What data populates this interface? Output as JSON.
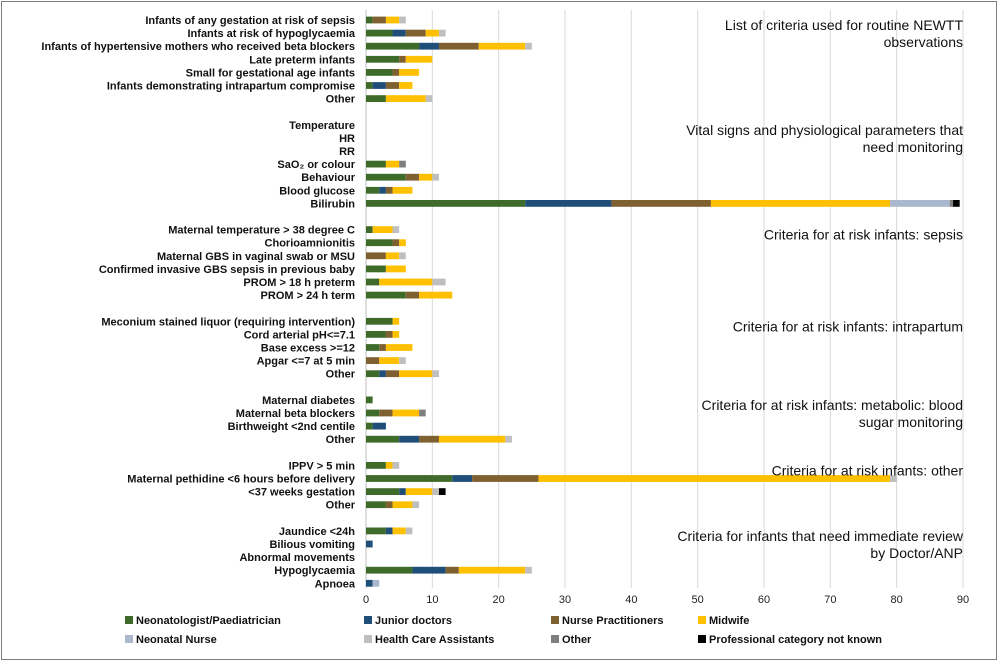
{
  "chart_data": {
    "type": "bar",
    "orientation": "horizontal",
    "stacked": true,
    "xlim": [
      0,
      90
    ],
    "xticks": [
      0,
      10,
      20,
      30,
      40,
      50,
      60,
      70,
      80,
      90
    ],
    "grid": true,
    "legend_position": "bottom",
    "series": [
      {
        "name": "Neonatologist/Paediatrician",
        "color": "#3f6b2a"
      },
      {
        "name": "Junior doctors",
        "color": "#1f4e79"
      },
      {
        "name": "Nurse Practitioners",
        "color": "#7f6030"
      },
      {
        "name": "Midwife",
        "color": "#ffc000"
      },
      {
        "name": "Neonatal Nurse",
        "color": "#a9b8cf"
      },
      {
        "name": "Health Care Assistants",
        "color": "#bfbfbf"
      },
      {
        "name": "Other",
        "color": "#7f7f7f"
      },
      {
        "name": "Professional category not known",
        "color": "#000000"
      }
    ],
    "groups": [
      {
        "title": [
          "List of criteria used for routine NEWTT",
          "observations"
        ],
        "items": [
          {
            "label": "Infants of any gestation at risk of sepsis",
            "values": [
              1,
              0,
              2,
              2,
              0,
              1,
              0,
              0
            ]
          },
          {
            "label": "Infants at risk of hypoglycaemia",
            "values": [
              4,
              2,
              3,
              2,
              0,
              1,
              0,
              0
            ]
          },
          {
            "label": "Infants of hypertensive mothers who received beta blockers",
            "values": [
              8,
              3,
              6,
              7,
              0,
              1,
              0,
              0
            ]
          },
          {
            "label": "Late preterm infants",
            "values": [
              5,
              0,
              1,
              4,
              0,
              0,
              0,
              0
            ]
          },
          {
            "label": "Small for gestational age infants",
            "values": [
              4,
              0,
              1,
              3,
              0,
              0,
              0,
              0
            ]
          },
          {
            "label": "Infants demonstrating intrapartum compromise",
            "values": [
              1,
              2,
              2,
              2,
              0,
              0,
              0,
              0
            ]
          },
          {
            "label": "Other",
            "values": [
              3,
              0,
              0,
              6,
              0,
              1,
              0,
              0
            ]
          }
        ]
      },
      {
        "title": [
          "Vital signs and physiological parameters that",
          "need monitoring"
        ],
        "items": [
          {
            "label": "Temperature",
            "values": [
              0,
              0,
              0,
              0,
              0,
              0,
              0,
              0
            ]
          },
          {
            "label": "HR",
            "values": [
              0,
              0,
              0,
              0,
              0,
              0,
              0,
              0
            ]
          },
          {
            "label": "RR",
            "values": [
              0,
              0,
              0,
              0,
              0,
              0,
              0,
              0
            ]
          },
          {
            "label": "SaO₂ or colour",
            "values": [
              3,
              0,
              0,
              2,
              0,
              0,
              1,
              0
            ]
          },
          {
            "label": "Behaviour",
            "values": [
              6,
              0,
              2,
              2,
              0,
              1,
              0,
              0
            ]
          },
          {
            "label": "Blood glucose",
            "values": [
              2,
              1,
              1,
              3,
              0,
              0,
              0,
              0
            ]
          },
          {
            "label": "Bilirubin",
            "values": [
              24,
              13,
              15,
              27,
              9,
              0,
              0.5,
              1
            ]
          }
        ]
      },
      {
        "title": [
          "Criteria for at risk infants: sepsis"
        ],
        "items": [
          {
            "label": "Maternal temperature > 38 degree C",
            "values": [
              1,
              0,
              0,
              3,
              0,
              1,
              0,
              0
            ]
          },
          {
            "label": "Chorioamnionitis",
            "values": [
              4,
              0,
              1,
              1,
              0,
              0,
              0,
              0
            ]
          },
          {
            "label": "Maternal GBS in vaginal swab or MSU",
            "values": [
              0,
              0,
              3,
              2,
              0,
              1,
              0,
              0
            ]
          },
          {
            "label": "Confirmed invasive GBS sepsis in previous baby",
            "values": [
              3,
              0,
              0,
              3,
              0,
              0,
              0,
              0
            ]
          },
          {
            "label": "PROM > 18 h preterm",
            "values": [
              2,
              0,
              0,
              8,
              0,
              2,
              0,
              0
            ]
          },
          {
            "label": "PROM > 24 h term",
            "values": [
              6,
              0,
              2,
              5,
              0,
              0,
              0,
              0
            ]
          }
        ]
      },
      {
        "title": [
          "Criteria for at risk infants: intrapartum"
        ],
        "items": [
          {
            "label": "Meconium stained liquor (requiring intervention)",
            "values": [
              4,
              0,
              0,
              1,
              0,
              0,
              0,
              0
            ]
          },
          {
            "label": "Cord arterial pH<=7.1",
            "values": [
              3,
              0,
              1,
              1,
              0,
              0,
              0,
              0
            ]
          },
          {
            "label": "Base excess >=12",
            "values": [
              2,
              0,
              1,
              4,
              0,
              0,
              0,
              0
            ]
          },
          {
            "label": "Apgar <=7 at 5 min",
            "values": [
              0,
              0,
              2,
              3,
              0,
              1,
              0,
              0
            ]
          },
          {
            "label": "Other",
            "values": [
              2,
              1,
              2,
              5,
              0,
              1,
              0,
              0
            ]
          }
        ]
      },
      {
        "title": [
          "Criteria for at risk infants: metabolic: blood",
          "sugar monitoring"
        ],
        "items": [
          {
            "label": "Maternal diabetes",
            "values": [
              1,
              0,
              0,
              0,
              0,
              0,
              0,
              0
            ]
          },
          {
            "label": "Maternal beta blockers",
            "values": [
              2,
              0,
              2,
              4,
              0,
              0,
              1,
              0
            ]
          },
          {
            "label": "Birthweight <2nd centile",
            "values": [
              1,
              2,
              0,
              0,
              0,
              0,
              0,
              0
            ]
          },
          {
            "label": "Other",
            "values": [
              5,
              3,
              3,
              10,
              0,
              1,
              0,
              0
            ]
          }
        ]
      },
      {
        "title": [
          "Criteria for at risk infants: other"
        ],
        "items": [
          {
            "label": "IPPV > 5 min",
            "values": [
              3,
              0,
              0,
              1,
              0,
              1,
              0,
              0
            ]
          },
          {
            "label": "Maternal pethidine <6 hours before delivery",
            "values": [
              13,
              3,
              10,
              53,
              0,
              1,
              0,
              0
            ]
          },
          {
            "label": "<37 weeks gestation",
            "values": [
              5,
              1,
              0,
              4,
              0,
              1,
              0,
              1
            ]
          },
          {
            "label": "Other",
            "values": [
              3,
              0,
              1,
              3,
              0,
              1,
              0,
              0
            ]
          }
        ]
      },
      {
        "title": [
          "Criteria for infants that need immediate review",
          "by Doctor/ANP"
        ],
        "items": [
          {
            "label": "Jaundice <24h",
            "values": [
              3,
              1,
              0,
              2,
              0,
              1,
              0,
              0
            ]
          },
          {
            "label": "Bilious vomiting",
            "values": [
              0,
              1,
              0,
              0,
              0,
              0,
              0,
              0
            ]
          },
          {
            "label": "Abnormal movements",
            "values": [
              0,
              0,
              0,
              0,
              0,
              0,
              0,
              0
            ]
          },
          {
            "label": "Hypoglycaemia",
            "values": [
              7,
              5,
              2,
              10,
              0,
              1,
              0,
              0
            ]
          },
          {
            "label": "Apnoea",
            "values": [
              0,
              1,
              0,
              0,
              1,
              0,
              0,
              0
            ]
          }
        ]
      }
    ]
  }
}
